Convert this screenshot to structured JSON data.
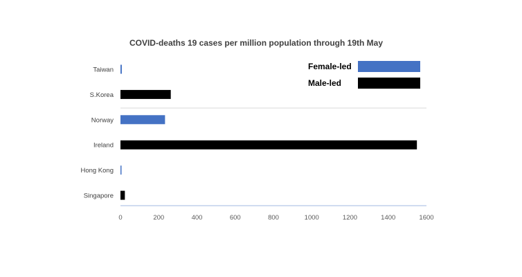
{
  "chart_data": {
    "type": "bar",
    "orientation": "horizontal",
    "title": "COVID-deaths 19 cases per million population through 19th May",
    "xlabel": "",
    "ylabel": "",
    "xlim": [
      0,
      1600
    ],
    "x_ticks": [
      "0",
      "200",
      "400",
      "600",
      "800",
      "1000",
      "1200",
      "1400",
      "1600"
    ],
    "categories": [
      "Taiwan",
      "S.Korea",
      "Norway",
      "Ireland",
      "Hong Kong",
      "Singapore"
    ],
    "values": [
      7,
      263,
      233,
      1550,
      5,
      23
    ],
    "groups": [
      "Female-led",
      "Male-led",
      "Female-led",
      "Male-led",
      "Female-led",
      "Male-led"
    ],
    "legend": {
      "position": "top-right",
      "entries": [
        {
          "label": "Female-led",
          "color": "#4472C4"
        },
        {
          "label": "Male-led",
          "color": "#000000"
        }
      ]
    },
    "colors": {
      "Female-led": "#4472C4",
      "Male-led": "#000000"
    },
    "grid": false
  }
}
